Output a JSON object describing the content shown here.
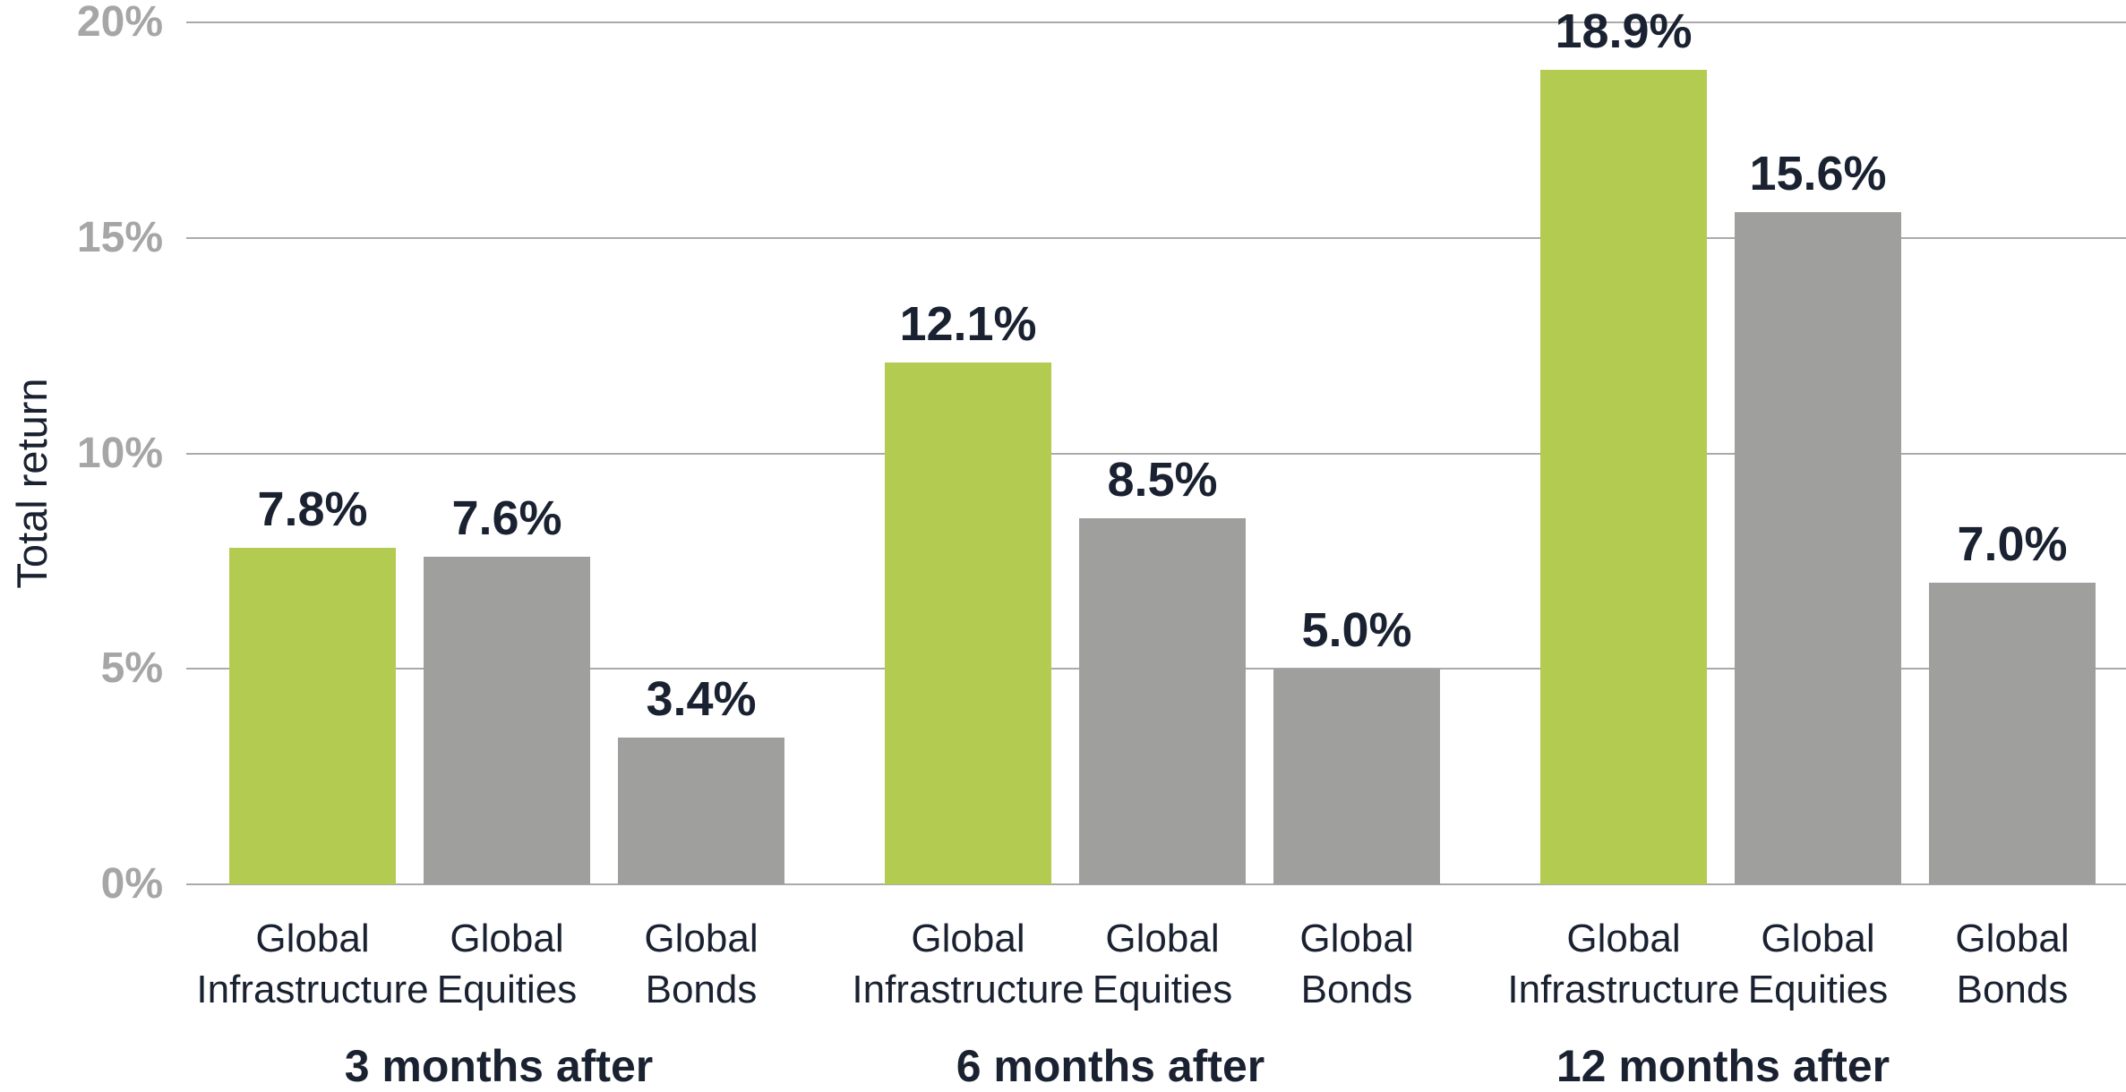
{
  "chart_data": {
    "type": "bar",
    "title": "",
    "ylabel": "Total return",
    "xlabel": "",
    "ylim": [
      0,
      20
    ],
    "grid": true,
    "legend": false,
    "yticks": [
      {
        "value": 20,
        "label": "20%"
      },
      {
        "value": 15,
        "label": "15%"
      },
      {
        "value": 10,
        "label": "10%"
      },
      {
        "value": 5,
        "label": "5%"
      },
      {
        "value": 0,
        "label": "0%"
      }
    ],
    "colors": {
      "highlight_bar": "#b4cb51",
      "neutral_bar": "#9f9f9d",
      "value_label": "#1a2231",
      "category_label": "#1a2231",
      "group_label": "#1a2231",
      "axis_title": "#1a2231",
      "tick_label": "#a6a6a6",
      "gridline": "#aaaaaa",
      "background": "#ffffff"
    },
    "groups": [
      {
        "label": "3 months after",
        "bars": [
          {
            "category_lines": [
              "Global",
              "Infrastructure"
            ],
            "value": 7.8,
            "value_label": "7.8%",
            "color": "highlight_bar"
          },
          {
            "category_lines": [
              "Global",
              "Equities"
            ],
            "value": 7.6,
            "value_label": "7.6%",
            "color": "neutral_bar"
          },
          {
            "category_lines": [
              "Global",
              "Bonds"
            ],
            "value": 3.4,
            "value_label": "3.4%",
            "color": "neutral_bar"
          }
        ]
      },
      {
        "label": "6 months after",
        "bars": [
          {
            "category_lines": [
              "Global",
              "Infrastructure"
            ],
            "value": 12.1,
            "value_label": "12.1%",
            "color": "highlight_bar"
          },
          {
            "category_lines": [
              "Global",
              "Equities"
            ],
            "value": 8.5,
            "value_label": "8.5%",
            "color": "neutral_bar"
          },
          {
            "category_lines": [
              "Global",
              "Bonds"
            ],
            "value": 5.0,
            "value_label": "5.0%",
            "color": "neutral_bar"
          }
        ]
      },
      {
        "label": "12 months after",
        "bars": [
          {
            "category_lines": [
              "Global",
              "Infrastructure"
            ],
            "value": 18.9,
            "value_label": "18.9%",
            "color": "highlight_bar"
          },
          {
            "category_lines": [
              "Global",
              "Equities"
            ],
            "value": 15.6,
            "value_label": "15.6%",
            "color": "neutral_bar"
          },
          {
            "category_lines": [
              "Global",
              "Bonds"
            ],
            "value": 7.0,
            "value_label": "7.0%",
            "color": "neutral_bar"
          }
        ]
      }
    ]
  }
}
